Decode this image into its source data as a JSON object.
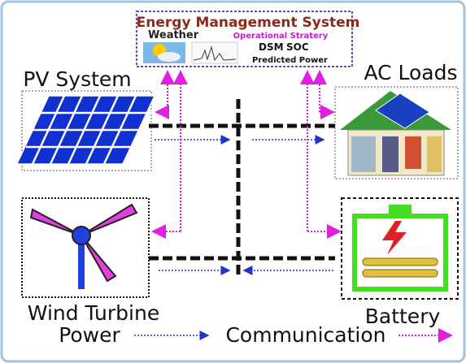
{
  "ems": {
    "title": "Energy Management System",
    "weather": "Weather",
    "strategy": "Operational Stratery",
    "dsm": "DSM",
    "soc": "SOC",
    "predicted": "Predicted Power"
  },
  "nodes": [
    {
      "label": "PV System"
    },
    {
      "label": "AC Loads"
    },
    {
      "label": "Wind Turbine"
    },
    {
      "label": "Battery"
    }
  ],
  "legend": [
    {
      "label": "Power"
    },
    {
      "label": "Communication"
    }
  ]
}
